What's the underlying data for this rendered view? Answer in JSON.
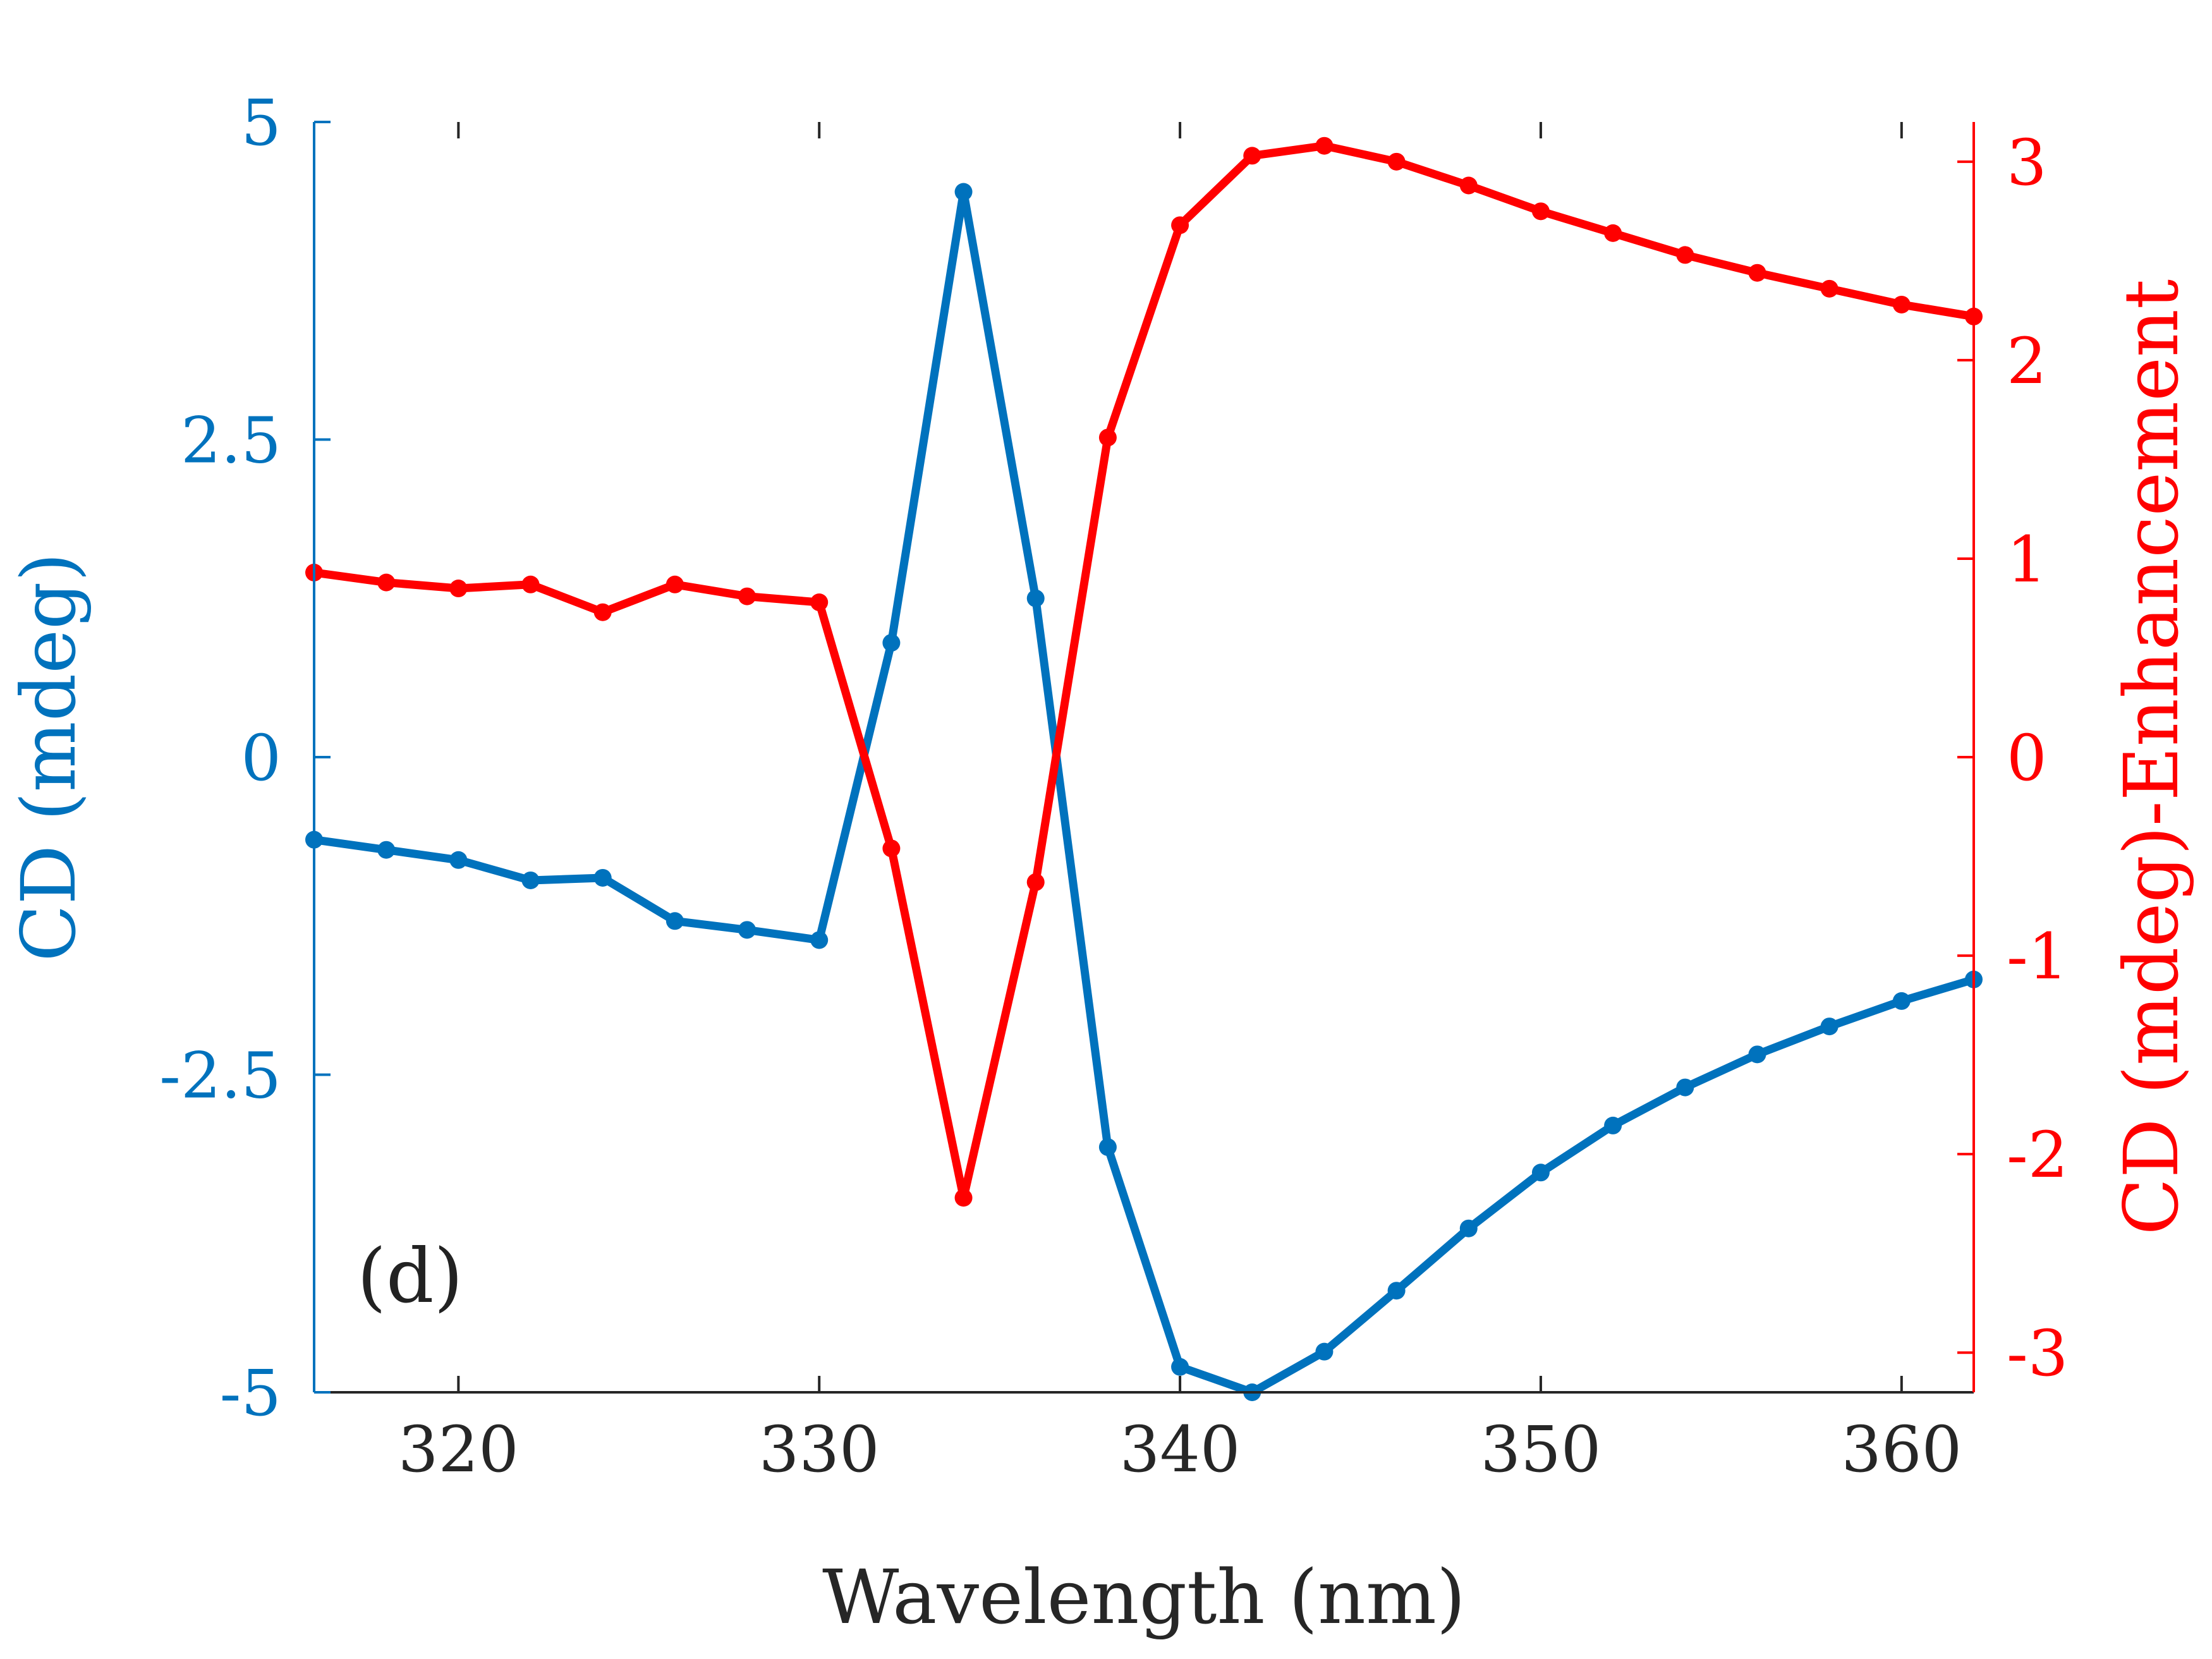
{
  "chart_data": {
    "type": "line",
    "panel_label": "(d)",
    "xlabel": "Wavelength (nm)",
    "xlim": [
      316,
      362
    ],
    "xticks": [
      320,
      330,
      340,
      350,
      360
    ],
    "xtick_labels": [
      "320",
      "330",
      "340",
      "350",
      "360"
    ],
    "left_axis": {
      "label": "CD (mdeg)",
      "color": "#0072BD",
      "ylim": [
        -5,
        5
      ],
      "ticks": [
        -5,
        -2.5,
        0,
        2.5,
        5
      ],
      "tick_labels": [
        "-5",
        "-2.5",
        "0",
        "2.5",
        "5"
      ]
    },
    "right_axis": {
      "label": "CD (mdeg)-Enhancement",
      "color": "#FF0000",
      "ylim": [
        -3.2,
        3.2
      ],
      "ticks": [
        -3,
        -2,
        -1,
        0,
        1,
        2,
        3
      ],
      "tick_labels": [
        "-3",
        "-2",
        "-1",
        "0",
        "1",
        "2",
        "3"
      ]
    },
    "series": [
      {
        "name": "CD (mdeg)",
        "axis": "left",
        "color": "#0072BD",
        "x": [
          316,
          318,
          320,
          322,
          324,
          326,
          328,
          330,
          332,
          334,
          336,
          338,
          340,
          342,
          344,
          346,
          348,
          350,
          352,
          354,
          356,
          358,
          360,
          362
        ],
        "values": [
          -0.65,
          -0.73,
          -0.81,
          -0.97,
          -0.95,
          -1.29,
          -1.36,
          -1.44,
          0.9,
          4.45,
          1.25,
          -3.07,
          -4.8,
          -5.0,
          -4.68,
          -4.2,
          -3.71,
          -3.27,
          -2.9,
          -2.6,
          -2.34,
          -2.12,
          -1.92,
          -1.75
        ]
      },
      {
        "name": "CD (mdeg)-Enhancement",
        "axis": "right",
        "color": "#FF0000",
        "x": [
          316,
          318,
          320,
          322,
          324,
          326,
          328,
          330,
          332,
          334,
          336,
          338,
          340,
          342,
          344,
          346,
          348,
          350,
          352,
          354,
          356,
          358,
          360,
          362
        ],
        "values": [
          0.93,
          0.88,
          0.85,
          0.87,
          0.73,
          0.87,
          0.81,
          0.78,
          -0.46,
          -2.22,
          -0.63,
          1.61,
          2.68,
          3.03,
          3.08,
          3.0,
          2.88,
          2.75,
          2.64,
          2.53,
          2.44,
          2.36,
          2.28,
          2.22
        ]
      }
    ]
  }
}
